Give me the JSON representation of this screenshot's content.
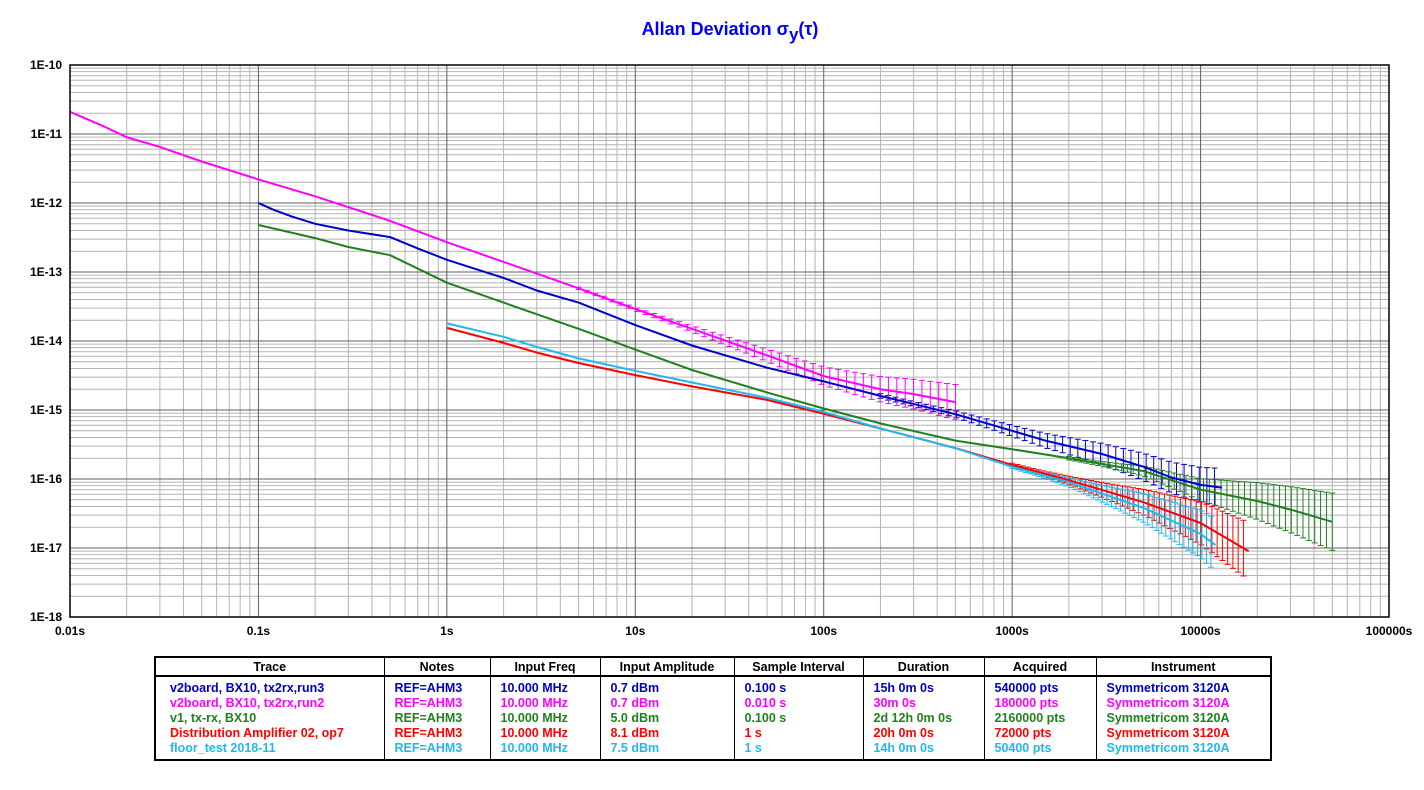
{
  "chart_data": {
    "type": "line",
    "title": "Allan Deviation",
    "title_symbol": "σ",
    "title_subscript": "y",
    "title_arg": "(τ)",
    "title_color": "#0000ff",
    "x_scale": "log",
    "y_scale": "log",
    "xlim": [
      0.01,
      100000
    ],
    "ylim": [
      1e-18,
      1e-10
    ],
    "x_tick_labels": [
      "0.01s",
      "0.1s",
      "1s",
      "10s",
      "100s",
      "1000s",
      "10000s",
      "100000s"
    ],
    "x_tick_values": [
      0.01,
      0.1,
      1,
      10,
      100,
      1000,
      10000,
      100000
    ],
    "y_tick_labels": [
      "1E-10",
      "1E-11",
      "1E-12",
      "1E-13",
      "1E-14",
      "1E-15",
      "1E-16",
      "1E-17",
      "1E-18"
    ],
    "y_tick_values": [
      1e-10,
      1e-11,
      1e-12,
      1e-13,
      1e-14,
      1e-15,
      1e-16,
      1e-17,
      1e-18
    ],
    "grid": true,
    "background_color": "#ffffff",
    "grid_major_color": "#606060",
    "grid_minor_color": "#b4b4b4",
    "legend_placement": "bottom-table",
    "series": [
      {
        "name": "v2board, BX10, tx2rx,run3",
        "color": "#0000cc",
        "points": [
          [
            0.1,
            1e-12
          ],
          [
            0.12,
            8e-13
          ],
          [
            0.15,
            6.4e-13
          ],
          [
            0.2,
            5e-13
          ],
          [
            0.3,
            4e-13
          ],
          [
            0.5,
            3.2e-13
          ],
          [
            0.7,
            2.2e-13
          ],
          [
            1,
            1.5e-13
          ],
          [
            2,
            8.2e-14
          ],
          [
            3,
            5.4e-14
          ],
          [
            5,
            3.6e-14
          ],
          [
            10,
            1.7e-14
          ],
          [
            20,
            8.6e-15
          ],
          [
            50,
            4.1e-15
          ],
          [
            100,
            2.6e-15
          ],
          [
            200,
            1.6e-15
          ],
          [
            500,
            8.7e-16
          ],
          [
            1000,
            5e-16
          ],
          [
            1500,
            3.6e-16
          ],
          [
            2000,
            3e-16
          ],
          [
            3000,
            2.3e-16
          ],
          [
            5000,
            1.5e-16
          ],
          [
            7000,
            1.05e-16
          ],
          [
            10000,
            8.2e-17
          ],
          [
            13000,
            7.5e-17
          ]
        ],
        "errorbars_from_tau": 200,
        "error_factor_start": 1.08,
        "error_factor_end": 1.9
      },
      {
        "name": "v2board, BX10, tx2rx,run2",
        "color": "#ff00ff",
        "points": [
          [
            0.01,
            2.1e-11
          ],
          [
            0.015,
            1.3e-11
          ],
          [
            0.02,
            9e-12
          ],
          [
            0.03,
            6.5e-12
          ],
          [
            0.05,
            4e-12
          ],
          [
            0.1,
            2.2e-12
          ],
          [
            0.2,
            1.25e-12
          ],
          [
            0.5,
            5.5e-13
          ],
          [
            1,
            2.7e-13
          ],
          [
            2,
            1.4e-13
          ],
          [
            5,
            5.8e-14
          ],
          [
            10,
            2.9e-14
          ],
          [
            20,
            1.5e-14
          ],
          [
            50,
            6.2e-15
          ],
          [
            100,
            3.1e-15
          ],
          [
            200,
            2e-15
          ],
          [
            300,
            1.7e-15
          ],
          [
            500,
            1.3e-15
          ]
        ],
        "errorbars_from_tau": 5,
        "error_factor_start": 1.04,
        "error_factor_end": 1.8
      },
      {
        "name": "v1, tx-rx, BX10",
        "color": "#208020",
        "points": [
          [
            0.1,
            4.8e-13
          ],
          [
            0.2,
            3.1e-13
          ],
          [
            0.3,
            2.3e-13
          ],
          [
            0.5,
            1.75e-13
          ],
          [
            1,
            7e-14
          ],
          [
            2,
            3.6e-14
          ],
          [
            5,
            1.5e-14
          ],
          [
            10,
            7.5e-15
          ],
          [
            20,
            3.8e-15
          ],
          [
            50,
            1.8e-15
          ],
          [
            100,
            1.05e-15
          ],
          [
            200,
            6.4e-16
          ],
          [
            500,
            3.6e-16
          ],
          [
            1000,
            2.7e-16
          ],
          [
            2000,
            2e-16
          ],
          [
            5000,
            1.3e-16
          ],
          [
            10000,
            7e-17
          ],
          [
            20000,
            4.8e-17
          ],
          [
            30000,
            3.6e-17
          ],
          [
            50000,
            2.4e-17
          ]
        ],
        "errorbars_from_tau": 2000,
        "error_factor_start": 1.06,
        "error_factor_end": 2.6
      },
      {
        "name": "Distribution Amplifier 02, op7",
        "color": "#ff0000",
        "points": [
          [
            1,
            1.55e-14
          ],
          [
            2,
            9.4e-15
          ],
          [
            3,
            6.8e-15
          ],
          [
            5,
            4.8e-15
          ],
          [
            10,
            3.2e-15
          ],
          [
            20,
            2.2e-15
          ],
          [
            50,
            1.4e-15
          ],
          [
            100,
            8.8e-16
          ],
          [
            200,
            5.4e-16
          ],
          [
            500,
            2.8e-16
          ],
          [
            1000,
            1.6e-16
          ],
          [
            2000,
            9.6e-17
          ],
          [
            5000,
            4.6e-17
          ],
          [
            10000,
            2.3e-17
          ],
          [
            15000,
            1.2e-17
          ],
          [
            18000,
            9e-18
          ]
        ],
        "errorbars_from_tau": 1000,
        "error_factor_start": 1.06,
        "error_factor_end": 2.6
      },
      {
        "name": "floor_test 2018-11",
        "color": "#20b8f0",
        "points": [
          [
            1,
            1.8e-14
          ],
          [
            2,
            1.15e-14
          ],
          [
            3,
            8.2e-15
          ],
          [
            5,
            5.6e-15
          ],
          [
            10,
            3.7e-15
          ],
          [
            20,
            2.5e-15
          ],
          [
            50,
            1.5e-15
          ],
          [
            100,
            9.4e-16
          ],
          [
            200,
            5.4e-16
          ],
          [
            500,
            2.8e-16
          ],
          [
            1000,
            1.5e-16
          ],
          [
            2000,
            9e-17
          ],
          [
            5000,
            3.8e-17
          ],
          [
            10000,
            1.6e-17
          ],
          [
            12000,
            1.1e-17
          ]
        ],
        "errorbars_from_tau": 1000,
        "error_factor_start": 1.06,
        "error_factor_end": 2.4
      }
    ]
  },
  "legend": {
    "headers": [
      "Trace",
      "Notes",
      "Input Freq",
      "Input Amplitude",
      "Sample Interval",
      "Duration",
      "Acquired",
      "Instrument"
    ],
    "rows": [
      {
        "color": "#0000cc",
        "cells": [
          "v2board, BX10, tx2rx,run3",
          "REF=AHM3",
          "10.000 MHz",
          "0.7 dBm",
          "0.100 s",
          "15h 0m 0s",
          "540000 pts",
          "Symmetricom 3120A"
        ]
      },
      {
        "color": "#ff00ff",
        "cells": [
          "v2board, BX10, tx2rx,run2",
          "REF=AHM3",
          "10.000 MHz",
          "0.7 dBm",
          "0.010 s",
          "30m 0s",
          "180000 pts",
          "Symmetricom 3120A"
        ]
      },
      {
        "color": "#208020",
        "cells": [
          "v1, tx-rx, BX10",
          "REF=AHM3",
          "10.000 MHz",
          "5.0 dBm",
          "0.100 s",
          "2d 12h 0m 0s",
          "2160000 pts",
          "Symmetricom 3120A"
        ]
      },
      {
        "color": "#ff0000",
        "cells": [
          "Distribution Amplifier 02, op7",
          "REF=AHM3",
          "10.000 MHz",
          "8.1 dBm",
          "1 s",
          "20h 0m 0s",
          "72000 pts",
          "Symmetricom 3120A"
        ]
      },
      {
        "color": "#20b8f0",
        "cells": [
          "floor_test 2018-11",
          "REF=AHM3",
          "10.000 MHz",
          "7.5 dBm",
          "1 s",
          "14h 0m 0s",
          "50400 pts",
          "Symmetricom 3120A"
        ]
      }
    ]
  }
}
